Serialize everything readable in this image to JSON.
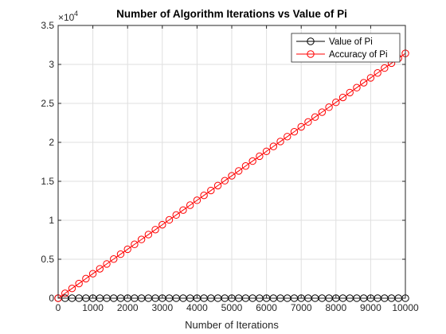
{
  "chart_data": {
    "type": "line",
    "title": "Number of Algorithm Iterations vs Value of Pi",
    "xlabel": "Number of Iterations",
    "ylabel": "",
    "xlim": [
      0,
      10000
    ],
    "ylim": [
      0,
      35000
    ],
    "y_exponent_label": "×10",
    "y_exponent_power": "4",
    "x_ticks": [
      0,
      1000,
      2000,
      3000,
      4000,
      5000,
      6000,
      7000,
      8000,
      9000,
      10000
    ],
    "x_tick_labels": [
      "0",
      "1000",
      "2000",
      "3000",
      "4000",
      "5000",
      "6000",
      "7000",
      "8000",
      "9000",
      "10000"
    ],
    "y_ticks": [
      0,
      5000,
      10000,
      15000,
      20000,
      25000,
      30000,
      35000
    ],
    "y_tick_labels": [
      "0",
      "0.5",
      "1",
      "1.5",
      "2",
      "2.5",
      "3",
      "3.5"
    ],
    "grid": true,
    "legend_position": "top-right",
    "marker": "circle",
    "series": [
      {
        "name": "Value of Pi",
        "color": "#000000",
        "x": [
          0,
          200,
          400,
          600,
          800,
          1000,
          1200,
          1400,
          1600,
          1800,
          2000,
          2200,
          2400,
          2600,
          2800,
          3000,
          3200,
          3400,
          3600,
          3800,
          4000,
          4200,
          4400,
          4600,
          4800,
          5000,
          5200,
          5400,
          5600,
          5800,
          6000,
          6200,
          6400,
          6600,
          6800,
          7000,
          7200,
          7400,
          7600,
          7800,
          8000,
          8200,
          8400,
          8600,
          8800,
          9000,
          9200,
          9400,
          9600,
          9800,
          10000
        ],
        "values": [
          3.14,
          3.14,
          3.14,
          3.14,
          3.14,
          3.14,
          3.14,
          3.14,
          3.14,
          3.14,
          3.14,
          3.14,
          3.14,
          3.14,
          3.14,
          3.14,
          3.14,
          3.14,
          3.14,
          3.14,
          3.14,
          3.14,
          3.14,
          3.14,
          3.14,
          3.14,
          3.14,
          3.14,
          3.14,
          3.14,
          3.14,
          3.14,
          3.14,
          3.14,
          3.14,
          3.14,
          3.14,
          3.14,
          3.14,
          3.14,
          3.14,
          3.14,
          3.14,
          3.14,
          3.14,
          3.14,
          3.14,
          3.14,
          3.14,
          3.14,
          3.14
        ]
      },
      {
        "name": "Accuracy of Pi",
        "color": "#ff0000",
        "x": [
          0,
          200,
          400,
          600,
          800,
          1000,
          1200,
          1400,
          1600,
          1800,
          2000,
          2200,
          2400,
          2600,
          2800,
          3000,
          3200,
          3400,
          3600,
          3800,
          4000,
          4200,
          4400,
          4600,
          4800,
          5000,
          5200,
          5400,
          5600,
          5800,
          6000,
          6200,
          6400,
          6600,
          6800,
          7000,
          7200,
          7400,
          7600,
          7800,
          8000,
          8200,
          8400,
          8600,
          8800,
          9000,
          9200,
          9400,
          9600,
          9800,
          10000
        ],
        "values": [
          0,
          628,
          1257,
          1885,
          2513,
          3142,
          3770,
          4398,
          5027,
          5655,
          6283,
          6912,
          7540,
          8168,
          8796,
          9425,
          10053,
          10681,
          11310,
          11938,
          12566,
          13195,
          13823,
          14451,
          15080,
          15708,
          16336,
          16965,
          17593,
          18221,
          18850,
          19478,
          20106,
          20735,
          21363,
          21991,
          22619,
          23248,
          23876,
          24504,
          25133,
          25761,
          26389,
          27018,
          27646,
          28274,
          28903,
          29531,
          30159,
          30788,
          31416
        ]
      }
    ]
  }
}
